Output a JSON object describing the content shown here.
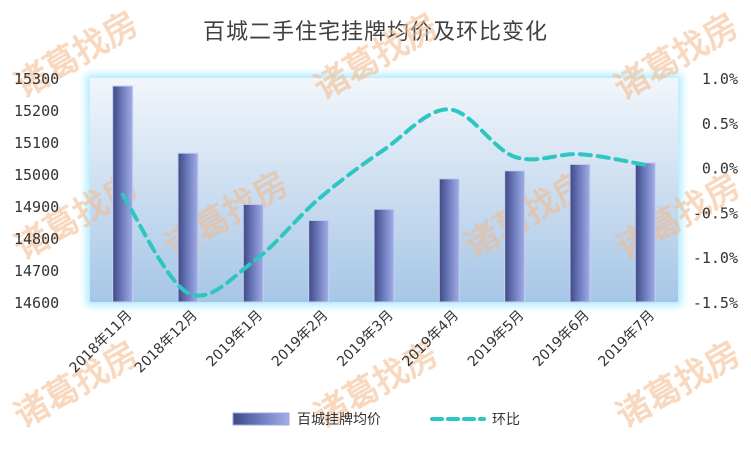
{
  "chart_data": {
    "type": "bar+line",
    "title": "百城二手住宅挂牌均价及环比变化",
    "categories": [
      "2018年11月",
      "2018年12月",
      "2019年1月",
      "2019年2月",
      "2019年3月",
      "2019年4月",
      "2019年5月",
      "2019年6月",
      "2019年7月"
    ],
    "series": [
      {
        "name": "百城挂牌均价",
        "type": "bar",
        "axis": "left",
        "values": [
          15275,
          15065,
          14905,
          14855,
          14890,
          14985,
          15010,
          15030,
          15035
        ]
      },
      {
        "name": "环比",
        "type": "line",
        "axis": "right",
        "style": "dashed",
        "values": [
          -0.3,
          -1.4,
          -1.05,
          -0.35,
          0.2,
          0.65,
          0.12,
          0.15,
          0.03
        ]
      }
    ],
    "y_left": {
      "min": 14600,
      "max": 15300,
      "ticks": [
        "14600",
        "14700",
        "14800",
        "14900",
        "15000",
        "15100",
        "15200",
        "15300"
      ]
    },
    "y_right": {
      "min": -1.5,
      "max": 1.0,
      "ticks": [
        "1.0%",
        "0.5%",
        "0.0%",
        "-0.5%",
        "-1.0%",
        "-1.5%"
      ]
    },
    "legend_position": "bottom",
    "colors": {
      "bar_dark": "#4a5590",
      "bar_light": "#9aa6e0",
      "line": "#2ec6c0",
      "plot_top": "#eef3fa",
      "plot_bottom": "#a9c9e8"
    },
    "watermark": "诸葛找房"
  }
}
